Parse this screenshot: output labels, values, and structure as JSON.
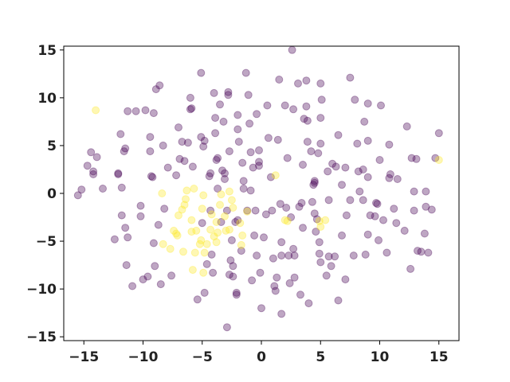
{
  "chart_data": {
    "type": "scatter",
    "title": "",
    "xlabel": "",
    "ylabel": "",
    "xlim": [
      -16.7,
      16.7
    ],
    "ylim": [
      -15.4,
      15.4
    ],
    "grid": false,
    "x_ticks": [
      -15,
      -10,
      -5,
      0,
      5,
      10,
      15
    ],
    "y_ticks": [
      -15,
      -10,
      -5,
      0,
      5,
      10,
      15
    ],
    "x_tick_labels": [
      "−15",
      "−10",
      "−5",
      "0",
      "5",
      "10",
      "15"
    ],
    "y_tick_labels": [
      "−15",
      "−10",
      "−5",
      "0",
      "5",
      "10",
      "15"
    ],
    "marker_opacity": 0.35,
    "series": [
      {
        "color": "#440154",
        "points": [
          [
            -15.5,
            -0.2
          ],
          [
            -15.2,
            0.4
          ],
          [
            -14.7,
            2.9
          ],
          [
            -14.4,
            4.3
          ],
          [
            -14.2,
            2.3
          ],
          [
            -14.2,
            2.0
          ],
          [
            -13.9,
            3.8
          ],
          [
            -13.4,
            0.5
          ],
          [
            -12.4,
            -4.8
          ],
          [
            -12.1,
            2.1
          ],
          [
            -12.1,
            2.0
          ],
          [
            -11.9,
            6.2
          ],
          [
            -11.8,
            0.6
          ],
          [
            -11.8,
            -2.3
          ],
          [
            -11.6,
            4.4
          ],
          [
            -11.5,
            4.7
          ],
          [
            -11.5,
            -3.6
          ],
          [
            -11.4,
            -7.5
          ],
          [
            -11.3,
            8.6
          ],
          [
            -11.3,
            -4.6
          ],
          [
            -10.9,
            -9.7
          ],
          [
            -10.6,
            8.6
          ],
          [
            -10.2,
            -1.3
          ],
          [
            -10.2,
            -2.4
          ],
          [
            -10.0,
            -9.0
          ],
          [
            -9.8,
            8.7
          ],
          [
            -9.6,
            -8.7
          ],
          [
            -9.4,
            5.9
          ],
          [
            -9.4,
            4.4
          ],
          [
            -9.3,
            1.8
          ],
          [
            -9.2,
            1.7
          ],
          [
            -9.1,
            8.4
          ],
          [
            -9.1,
            -5.2
          ],
          [
            -9.0,
            -7.6
          ],
          [
            -8.9,
            10.9
          ],
          [
            -8.7,
            -3.3
          ],
          [
            -8.6,
            11.3
          ],
          [
            -8.5,
            -9.5
          ],
          [
            -8.3,
            5.0
          ],
          [
            -8.2,
            -1.6
          ],
          [
            -7.9,
            2.7
          ],
          [
            -7.6,
            -8.6
          ],
          [
            -7.2,
            1.9
          ],
          [
            -7.0,
            6.9
          ],
          [
            -6.9,
            3.6
          ],
          [
            -6.7,
            5.4
          ],
          [
            -6.5,
            3.4
          ],
          [
            -6.2,
            5.3
          ],
          [
            -6.0,
            10.0
          ],
          [
            -6.0,
            8.8
          ],
          [
            -5.9,
            8.9
          ],
          [
            -5.8,
            2.8
          ],
          [
            -5.4,
            -11.1
          ],
          [
            -5.1,
            12.6
          ],
          [
            -5.1,
            5.9
          ],
          [
            -5.0,
            -3.1
          ],
          [
            -4.9,
            4.9
          ],
          [
            -4.8,
            5.5
          ],
          [
            -4.8,
            -10.4
          ],
          [
            -4.6,
            -7.4
          ],
          [
            -4.4,
            1.8
          ],
          [
            -4.3,
            2.1
          ],
          [
            -4.3,
            -1.8
          ],
          [
            -4.2,
            -6.4
          ],
          [
            -4.1,
            -8.3
          ],
          [
            -4.0,
            10.5
          ],
          [
            -3.9,
            7.9
          ],
          [
            -3.9,
            6.3
          ],
          [
            -3.8,
            3.5
          ],
          [
            -3.7,
            3.7
          ],
          [
            -3.7,
            0.5
          ],
          [
            -3.5,
            9.3
          ],
          [
            -3.4,
            -3.0
          ],
          [
            -3.3,
            2.4
          ],
          [
            -3.2,
            7.5
          ],
          [
            -3.1,
            2.1
          ],
          [
            -3.1,
            1.5
          ],
          [
            -2.9,
            -14.0
          ],
          [
            -2.9,
            -1.8
          ],
          [
            -2.8,
            10.3
          ],
          [
            -2.8,
            10.6
          ],
          [
            -2.7,
            4.4
          ],
          [
            -2.7,
            -8.5
          ],
          [
            -2.6,
            -7.0
          ],
          [
            -2.5,
            -4.9
          ],
          [
            -2.4,
            -7.6
          ],
          [
            -2.4,
            -8.7
          ],
          [
            -2.2,
            -3.0
          ],
          [
            -2.1,
            -10.6
          ],
          [
            -2.1,
            -10.4
          ],
          [
            -2.0,
            6.7
          ],
          [
            -2.0,
            8.2
          ],
          [
            -2.0,
            -2.8
          ],
          [
            -1.9,
            5.4
          ],
          [
            -1.7,
            -6.0
          ],
          [
            -1.6,
            3.2
          ],
          [
            -1.5,
            1.3
          ],
          [
            -1.5,
            0.5
          ],
          [
            -1.3,
            12.6
          ],
          [
            -1.2,
            -1.8
          ],
          [
            -1.1,
            10.3
          ],
          [
            -1.0,
            7.3
          ],
          [
            -0.9,
            4.3
          ],
          [
            -0.9,
            0.3
          ],
          [
            -0.8,
            -9.1
          ],
          [
            -0.7,
            2.7
          ],
          [
            -0.6,
            -4.4
          ],
          [
            -0.5,
            -1.8
          ],
          [
            -0.4,
            8.3
          ],
          [
            -0.4,
            -6.5
          ],
          [
            -0.2,
            4.5
          ],
          [
            -0.2,
            3.3
          ],
          [
            -0.2,
            2.9
          ],
          [
            -0.1,
            -8.3
          ],
          [
            0.0,
            -12.0
          ],
          [
            0.2,
            -4.6
          ],
          [
            0.4,
            -2.2
          ],
          [
            0.5,
            9.2
          ],
          [
            0.6,
            5.8
          ],
          [
            0.8,
            1.7
          ],
          [
            0.9,
            -1.8
          ],
          [
            1.0,
            -6.8
          ],
          [
            1.1,
            -9.7
          ],
          [
            1.2,
            -10.2
          ],
          [
            1.3,
            -8.8
          ],
          [
            1.4,
            5.6
          ],
          [
            1.5,
            11.9
          ],
          [
            1.6,
            -1.1
          ],
          [
            1.7,
            -5.1
          ],
          [
            1.7,
            -6.5
          ],
          [
            1.7,
            -12.6
          ],
          [
            2.0,
            9.2
          ],
          [
            2.1,
            -1.5
          ],
          [
            2.2,
            3.7
          ],
          [
            2.3,
            -6.5
          ],
          [
            2.4,
            -9.4
          ],
          [
            2.5,
            -2.5
          ],
          [
            2.6,
            15.0
          ],
          [
            2.7,
            8.8
          ],
          [
            2.7,
            -5.8
          ],
          [
            2.8,
            -6.5
          ],
          [
            2.8,
            -8.8
          ],
          [
            3.1,
            11.5
          ],
          [
            3.2,
            -1.4
          ],
          [
            3.3,
            -10.6
          ],
          [
            3.4,
            -1.0
          ],
          [
            3.5,
            3.0
          ],
          [
            3.5,
            -3.6
          ],
          [
            3.6,
            7.8
          ],
          [
            3.8,
            11.8
          ],
          [
            3.8,
            9.1
          ],
          [
            3.9,
            5.4
          ],
          [
            3.9,
            7.6
          ],
          [
            4.0,
            -11.5
          ],
          [
            4.2,
            4.4
          ],
          [
            4.3,
            -0.9
          ],
          [
            4.4,
            0.9
          ],
          [
            4.5,
            -2.1
          ],
          [
            4.5,
            1.3
          ],
          [
            4.5,
            1.1
          ],
          [
            4.6,
            -4.0
          ],
          [
            4.7,
            -2.7
          ],
          [
            4.8,
            4.2
          ],
          [
            4.9,
            -6.3
          ],
          [
            4.9,
            -5.1
          ],
          [
            5.0,
            7.9
          ],
          [
            5.0,
            5.2
          ],
          [
            5.0,
            11.5
          ],
          [
            5.0,
            -7.2
          ],
          [
            5.1,
            9.8
          ],
          [
            5.5,
            -8.6
          ],
          [
            5.6,
            2.3
          ],
          [
            5.7,
            -0.7
          ],
          [
            5.7,
            -6.6
          ],
          [
            5.9,
            -7.6
          ],
          [
            6.0,
            3.1
          ],
          [
            6.2,
            -6.6
          ],
          [
            6.3,
            2.8
          ],
          [
            6.5,
            -11.2
          ],
          [
            6.5,
            6.1
          ],
          [
            6.8,
            0.9
          ],
          [
            6.8,
            -4.4
          ],
          [
            7.1,
            2.7
          ],
          [
            7.1,
            -9.0
          ],
          [
            7.2,
            -2.3
          ],
          [
            7.5,
            -0.7
          ],
          [
            7.5,
            12.1
          ],
          [
            7.8,
            -6.5
          ],
          [
            7.9,
            9.8
          ],
          [
            8.1,
            5.2
          ],
          [
            8.2,
            2.3
          ],
          [
            8.3,
            0.2
          ],
          [
            8.6,
            -0.7
          ],
          [
            8.6,
            2.5
          ],
          [
            8.7,
            7.5
          ],
          [
            8.8,
            -6.4
          ],
          [
            9.0,
            5.5
          ],
          [
            9.0,
            9.4
          ],
          [
            9.0,
            1.7
          ],
          [
            9.0,
            -4.3
          ],
          [
            9.2,
            -2.3
          ],
          [
            9.6,
            -2.4
          ],
          [
            9.7,
            -1.0
          ],
          [
            9.8,
            -1.1
          ],
          [
            9.9,
            -4.9
          ],
          [
            10.0,
            3.5
          ],
          [
            10.1,
            9.2
          ],
          [
            10.3,
            -2.8
          ],
          [
            10.6,
            -6.2
          ],
          [
            10.8,
            1.6
          ],
          [
            10.8,
            5.1
          ],
          [
            10.9,
            2.0
          ],
          [
            11.2,
            -1.6
          ],
          [
            11.4,
            -3.1
          ],
          [
            11.5,
            1.5
          ],
          [
            12.1,
            -3.9
          ],
          [
            12.3,
            7.0
          ],
          [
            12.6,
            -7.9
          ],
          [
            12.7,
            3.7
          ],
          [
            12.9,
            0.2
          ],
          [
            12.9,
            -1.8
          ],
          [
            13.1,
            3.6
          ],
          [
            13.2,
            -6.0
          ],
          [
            13.5,
            -6.1
          ],
          [
            13.8,
            -4.2
          ],
          [
            13.9,
            0.2
          ],
          [
            13.9,
            -1.4
          ],
          [
            14.1,
            -6.2
          ],
          [
            14.4,
            -1.7
          ],
          [
            14.7,
            3.7
          ],
          [
            15.0,
            6.3
          ]
        ]
      },
      {
        "color": "#fde725",
        "points": [
          [
            -14.0,
            8.7
          ],
          [
            -8.4,
            0.0
          ],
          [
            -8.3,
            -5.3
          ],
          [
            -7.7,
            -5.8
          ],
          [
            -7.4,
            -3.9
          ],
          [
            -7.2,
            -4.2
          ],
          [
            -7.1,
            -4.4
          ],
          [
            -7.0,
            -2.3
          ],
          [
            -6.7,
            -1.7
          ],
          [
            -6.6,
            -6.1
          ],
          [
            -6.5,
            -1.2
          ],
          [
            -6.4,
            -0.6
          ],
          [
            -6.3,
            0.3
          ],
          [
            -5.9,
            -2.8
          ],
          [
            -5.9,
            -4.0
          ],
          [
            -5.8,
            -8.0
          ],
          [
            -5.7,
            0.5
          ],
          [
            -5.6,
            -6.2
          ],
          [
            -5.5,
            -3.9
          ],
          [
            -5.2,
            -5.3
          ],
          [
            -5.1,
            -4.9
          ],
          [
            -5.0,
            -1.6
          ],
          [
            -4.9,
            -0.2
          ],
          [
            -4.9,
            -8.3
          ],
          [
            -4.8,
            -6.2
          ],
          [
            -4.6,
            -5.3
          ],
          [
            -4.3,
            -3.8
          ],
          [
            -4.2,
            -2.2
          ],
          [
            -4.0,
            -4.5
          ],
          [
            -3.8,
            -3.0
          ],
          [
            -3.8,
            -5.1
          ],
          [
            -3.7,
            -4.1
          ],
          [
            -3.5,
            -1.2
          ],
          [
            -3.4,
            -0.1
          ],
          [
            -3.1,
            -2.4
          ],
          [
            -3.0,
            -3.9
          ],
          [
            -2.7,
            -3.8
          ],
          [
            -2.7,
            0.2
          ],
          [
            -2.5,
            -0.7
          ],
          [
            -2.4,
            -1.5
          ],
          [
            -1.8,
            -3.1
          ],
          [
            -1.7,
            -5.4
          ],
          [
            -1.6,
            -4.4
          ],
          [
            -1.2,
            -1.9
          ],
          [
            1.2,
            1.9
          ],
          [
            2.0,
            -2.8
          ],
          [
            2.2,
            -2.9
          ],
          [
            4.9,
            -2.9
          ],
          [
            5.0,
            -3.5
          ],
          [
            5.4,
            -2.8
          ],
          [
            15.0,
            3.5
          ]
        ]
      }
    ]
  }
}
